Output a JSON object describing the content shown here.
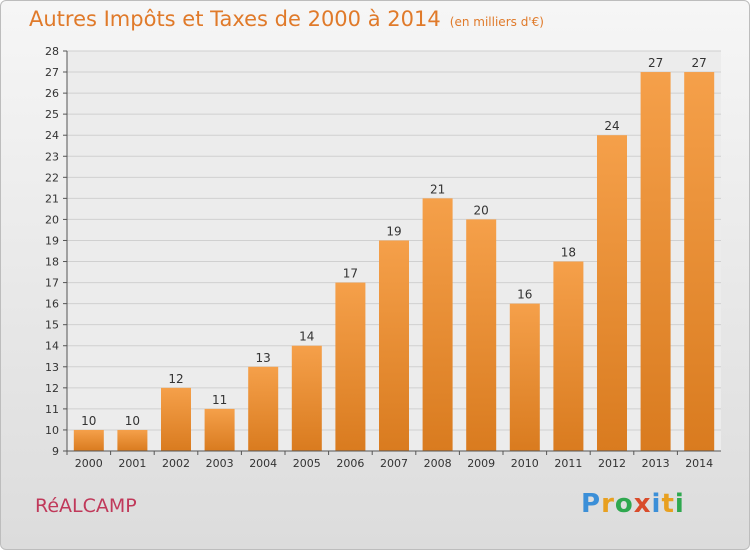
{
  "title": "Autres Impôts et Taxes de 2000 à 2014",
  "unit": "(en milliers d'€)",
  "municipality": "RéALCAMP",
  "logo": {
    "letters": [
      "P",
      "r",
      "o",
      "x",
      "i",
      "t",
      "i"
    ],
    "colors": [
      "#3b8fd8",
      "#e8a020",
      "#2fa84f",
      "#d94b2b",
      "#3b8fd8",
      "#e8a020",
      "#2fa84f"
    ]
  },
  "colors": {
    "bar_top": "#f5a04a",
    "bar_bottom": "#d97b1f",
    "title": "#e07a2a",
    "municipality": "#c0395a"
  },
  "chart_data": {
    "type": "bar",
    "title": "Autres Impôts et Taxes de 2000 à 2014",
    "categories": [
      "2000",
      "2001",
      "2002",
      "2003",
      "2004",
      "2005",
      "2006",
      "2007",
      "2008",
      "2009",
      "2010",
      "2011",
      "2012",
      "2013",
      "2014"
    ],
    "values": [
      10,
      10,
      12,
      11,
      13,
      14,
      17,
      19,
      21,
      20,
      16,
      18,
      24,
      27,
      27
    ],
    "ylim": [
      9,
      28
    ],
    "yticks": [
      9,
      10,
      11,
      12,
      13,
      14,
      15,
      16,
      17,
      18,
      19,
      20,
      21,
      22,
      23,
      24,
      25,
      26,
      27,
      28
    ],
    "grid": true,
    "data_labels": true
  }
}
